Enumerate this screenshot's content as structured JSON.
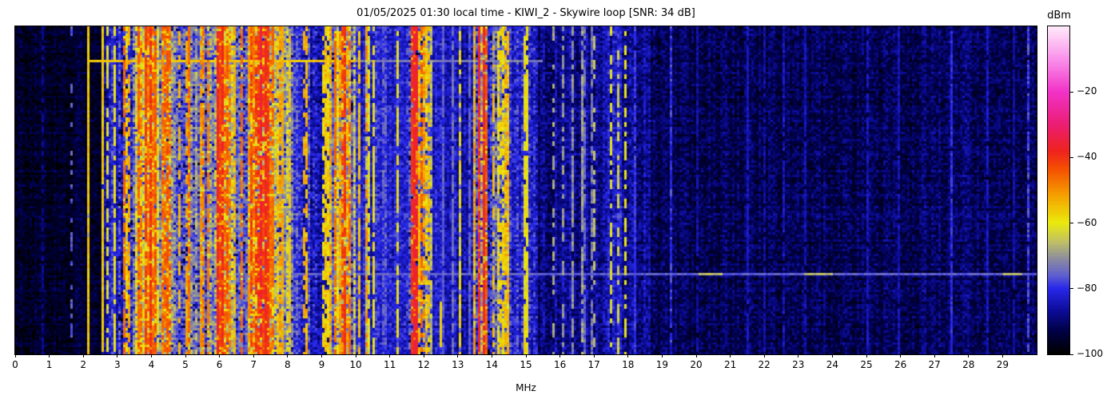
{
  "title": "01/05/2025 01:30 local time - KIWI_2 - Skywire loop [SNR: 34 dB]",
  "axes": {
    "x_label": "MHz",
    "x_ticks": [
      "0",
      "1",
      "2",
      "3",
      "4",
      "5",
      "6",
      "7",
      "8",
      "9",
      "10",
      "11",
      "12",
      "13",
      "14",
      "15",
      "16",
      "17",
      "18",
      "19",
      "20",
      "21",
      "22",
      "23",
      "24",
      "25",
      "26",
      "27",
      "28",
      "29"
    ],
    "colorbar_label": "dBm",
    "colorbar_ticks": [
      {
        "label": "−20",
        "value": -20
      },
      {
        "label": "−40",
        "value": -40
      },
      {
        "label": "−60",
        "value": -60
      },
      {
        "label": "−80",
        "value": -80
      },
      {
        "label": "−100",
        "value": -100
      }
    ]
  },
  "chart_data": {
    "type": "heatmap",
    "subtype": "radio-spectrum-waterfall",
    "title": "01/05/2025 01:30 local time - KIWI_2 - Skywire loop [SNR: 34 dB]",
    "datetime_local": "01/05/2025 01:30",
    "station": "KIWI_2",
    "antenna": "Skywire loop",
    "snr_db": 34,
    "xlabel": "MHz",
    "x_range_mhz": [
      0,
      30
    ],
    "y_axis": "time (no ticks shown)",
    "value_units": "dBm",
    "value_range": [
      -100,
      0
    ],
    "grid": false,
    "legend": "colorbar right",
    "noise_seed": 1420250105,
    "colormap_stops": [
      [
        -100,
        0,
        0,
        0
      ],
      [
        -93,
        0,
        0,
        70
      ],
      [
        -87,
        12,
        12,
        150
      ],
      [
        -80,
        40,
        40,
        235
      ],
      [
        -76,
        96,
        96,
        208
      ],
      [
        -71,
        140,
        140,
        160
      ],
      [
        -66,
        190,
        190,
        105
      ],
      [
        -60,
        235,
        235,
        15
      ],
      [
        -52,
        245,
        165,
        0
      ],
      [
        -44,
        245,
        85,
        0
      ],
      [
        -38,
        240,
        35,
        30
      ],
      [
        -30,
        235,
        30,
        115
      ],
      [
        -20,
        242,
        50,
        200
      ],
      [
        -10,
        250,
        145,
        235
      ],
      [
        0,
        255,
        235,
        250
      ]
    ],
    "bands": [
      [
        0.0,
        1.75,
        -96,
        1.5,
        4,
        0.004,
        -84
      ],
      [
        1.75,
        2.55,
        -95,
        1.5,
        4,
        0.01,
        -70
      ],
      [
        2.55,
        3.05,
        -84,
        5,
        5,
        0.1,
        -60
      ],
      [
        3.05,
        3.5,
        -78,
        6,
        6,
        0.22,
        -55
      ],
      [
        3.5,
        4.55,
        -68,
        8,
        6,
        0.45,
        -48
      ],
      [
        4.55,
        5.05,
        -75,
        8,
        6,
        0.25,
        -54
      ],
      [
        5.05,
        5.85,
        -70,
        8,
        6,
        0.35,
        -51
      ],
      [
        5.85,
        6.35,
        -64,
        7,
        6,
        0.5,
        -46
      ],
      [
        6.35,
        6.9,
        -70,
        8,
        6,
        0.3,
        -51
      ],
      [
        6.9,
        7.6,
        -62,
        7,
        6,
        0.5,
        -44
      ],
      [
        7.6,
        8.15,
        -71,
        7,
        6,
        0.3,
        -54
      ],
      [
        8.15,
        9.25,
        -82,
        5,
        6,
        0.12,
        -57
      ],
      [
        9.25,
        10.0,
        -69,
        8,
        6,
        0.4,
        -50
      ],
      [
        10.0,
        11.55,
        -80,
        4,
        5,
        0.08,
        -62
      ],
      [
        11.55,
        12.2,
        -75,
        6,
        6,
        0.3,
        -53
      ],
      [
        12.2,
        13.45,
        -85,
        3.5,
        5,
        0.06,
        -62
      ],
      [
        13.45,
        13.9,
        -71,
        7,
        6,
        0.35,
        -50
      ],
      [
        13.9,
        14.5,
        -78,
        6,
        6,
        0.22,
        -56
      ],
      [
        14.5,
        15.35,
        -80,
        5,
        6,
        0.14,
        -60
      ],
      [
        15.35,
        16.2,
        -88,
        3,
        5,
        0.04,
        -70
      ],
      [
        16.2,
        17.2,
        -87,
        3.5,
        5,
        0.04,
        -72
      ],
      [
        17.2,
        18.1,
        -85,
        4,
        5,
        0.1,
        -66
      ],
      [
        18.1,
        18.65,
        -87,
        3,
        5,
        0.02,
        -76
      ],
      [
        18.65,
        26.6,
        -92,
        2,
        4.5,
        0.012,
        -81
      ],
      [
        26.6,
        28.0,
        -90.5,
        2,
        4.5,
        0.012,
        -81
      ],
      [
        28.0,
        30.0,
        -92,
        2,
        4.5,
        0.012,
        -81
      ]
    ],
    "carriers": [
      [
        0.8,
        -88,
        0.6
      ],
      [
        1.63,
        -76,
        0.45
      ],
      [
        2.09,
        -56,
        0.95
      ],
      [
        2.5,
        -56,
        0.9
      ],
      [
        2.65,
        -62,
        0.7
      ],
      [
        2.88,
        -60,
        0.75
      ],
      [
        3.2,
        -46,
        0.85
      ],
      [
        3.33,
        -52,
        0.7
      ],
      [
        3.62,
        -48,
        0.8
      ],
      [
        3.8,
        -42,
        0.9
      ],
      [
        3.95,
        -40,
        0.92
      ],
      [
        4.1,
        -44,
        0.85
      ],
      [
        4.3,
        -50,
        0.7
      ],
      [
        4.47,
        -44,
        0.85
      ],
      [
        4.77,
        -54,
        0.6
      ],
      [
        5.0,
        -52,
        0.7
      ],
      [
        5.1,
        -46,
        0.8
      ],
      [
        5.4,
        -50,
        0.7
      ],
      [
        5.65,
        -48,
        0.75
      ],
      [
        5.9,
        -38,
        0.95
      ],
      [
        6.0,
        -42,
        0.9
      ],
      [
        6.07,
        -38,
        0.95
      ],
      [
        6.18,
        -44,
        0.85
      ],
      [
        6.6,
        -46,
        0.8
      ],
      [
        6.8,
        -50,
        0.7
      ],
      [
        7.2,
        -36,
        0.95
      ],
      [
        7.3,
        -38,
        0.95
      ],
      [
        7.42,
        -41,
        0.9
      ],
      [
        7.55,
        -46,
        0.8
      ],
      [
        7.8,
        -52,
        0.7
      ],
      [
        8.0,
        -56,
        0.6
      ],
      [
        8.46,
        -53,
        0.45
      ],
      [
        9.0,
        -58,
        0.5
      ],
      [
        9.4,
        -46,
        0.85
      ],
      [
        9.55,
        -42,
        0.6
      ],
      [
        9.65,
        -40,
        0.9
      ],
      [
        9.82,
        -46,
        0.8
      ],
      [
        10.05,
        -55,
        0.7
      ],
      [
        10.25,
        -50,
        0.5
      ],
      [
        11.6,
        -40,
        0.9
      ],
      [
        11.7,
        -36,
        0.97
      ],
      [
        11.78,
        -37,
        0.95
      ],
      [
        11.9,
        -46,
        0.7
      ],
      [
        12.1,
        -55,
        0.45
      ],
      [
        12.55,
        -76,
        0.9
      ],
      [
        12.8,
        -74,
        0.9
      ],
      [
        13.05,
        -75,
        0.9
      ],
      [
        13.3,
        -76,
        0.9
      ],
      [
        13.57,
        -36,
        0.95
      ],
      [
        13.7,
        -38,
        0.95
      ],
      [
        13.78,
        -44,
        0.8
      ],
      [
        14.0,
        -55,
        0.5
      ],
      [
        14.23,
        -57,
        0.5
      ],
      [
        14.45,
        -60,
        0.4
      ],
      [
        15.0,
        -60,
        0.4
      ],
      [
        15.8,
        -68,
        0.45
      ],
      [
        16.07,
        -70,
        0.6
      ],
      [
        17.0,
        -66,
        0.5
      ],
      [
        17.48,
        -62,
        0.5
      ],
      [
        17.7,
        -64,
        0.45
      ],
      [
        17.9,
        -60,
        0.55
      ],
      [
        18.2,
        -79,
        0.9
      ],
      [
        19.2,
        -85,
        0.9
      ],
      [
        20.0,
        -86,
        0.9
      ],
      [
        21.46,
        -84,
        0.9
      ],
      [
        22.0,
        -86,
        0.9
      ],
      [
        23.2,
        -85,
        0.9
      ],
      [
        25.0,
        -84,
        0.9
      ],
      [
        25.9,
        -85,
        0.9
      ],
      [
        27.45,
        -80,
        0.95
      ],
      [
        28.5,
        -84,
        0.9
      ],
      [
        29.3,
        -86,
        0.9
      ]
    ],
    "events": [
      [
        0.105,
        2.08,
        10.0,
        -56
      ],
      [
        0.105,
        10.0,
        15.5,
        -73
      ],
      [
        0.751,
        6.5,
        30.0,
        -76
      ],
      [
        0.751,
        20.1,
        20.8,
        -66
      ],
      [
        0.751,
        23.2,
        24.0,
        -67
      ],
      [
        0.751,
        29.0,
        29.6,
        -66
      ]
    ],
    "patches": [
      [
        12.45,
        0.84,
        0.97,
        -57
      ]
    ]
  }
}
